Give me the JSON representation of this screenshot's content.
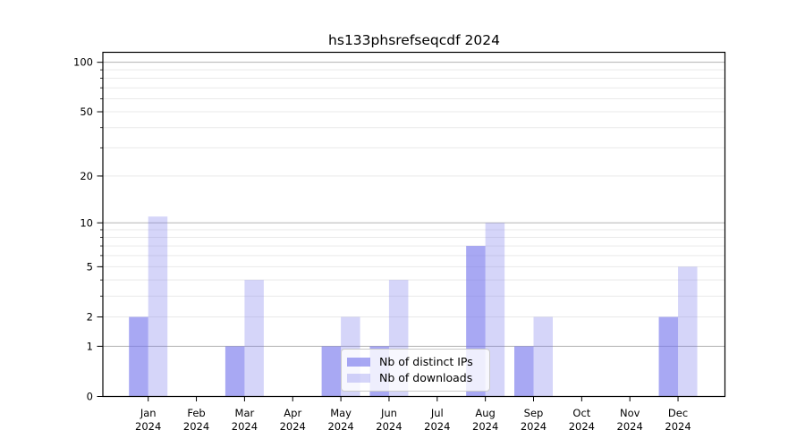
{
  "chart_data": {
    "type": "bar",
    "title": "hs133phsrefseqcdf 2024",
    "categories": [
      "Jan",
      "Feb",
      "Mar",
      "Apr",
      "May",
      "Jun",
      "Jul",
      "Aug",
      "Sep",
      "Oct",
      "Nov",
      "Dec"
    ],
    "x_year_label": "2024",
    "series": [
      {
        "name": "Nb of distinct IPs",
        "values": [
          2,
          0,
          1,
          0,
          1,
          1,
          0,
          7,
          1,
          0,
          0,
          2
        ],
        "color": "rgba(121,121,236,0.65)",
        "color_hex_on_white": "#a8a8f3"
      },
      {
        "name": "Nb of downloads",
        "values": [
          11,
          0,
          4,
          0,
          2,
          4,
          0,
          10,
          2,
          0,
          0,
          5
        ],
        "color": "rgba(121,121,236,0.31)",
        "color_hex_on_white": "#d7d7f9"
      }
    ],
    "y_axis": {
      "scale": "log1p",
      "tick_values": [
        0,
        1,
        2,
        5,
        10,
        20,
        50,
        100
      ],
      "tick_labels": [
        "0",
        "1",
        "2",
        "5",
        "10",
        "20",
        "50",
        "100"
      ],
      "major_grid_values": [
        1,
        10,
        100
      ],
      "minor_grid_values": [
        2,
        3,
        4,
        5,
        6,
        7,
        8,
        9,
        20,
        30,
        40,
        50,
        60,
        70,
        80,
        90
      ],
      "ylim": [
        0,
        115
      ]
    },
    "legend": {
      "position": "lower-center"
    },
    "colors": {
      "major_grid": "#b3b3b3",
      "minor_grid": "#e9e9e9",
      "spine": "#000000",
      "tick_text": "#000000",
      "background": "#ffffff"
    }
  }
}
